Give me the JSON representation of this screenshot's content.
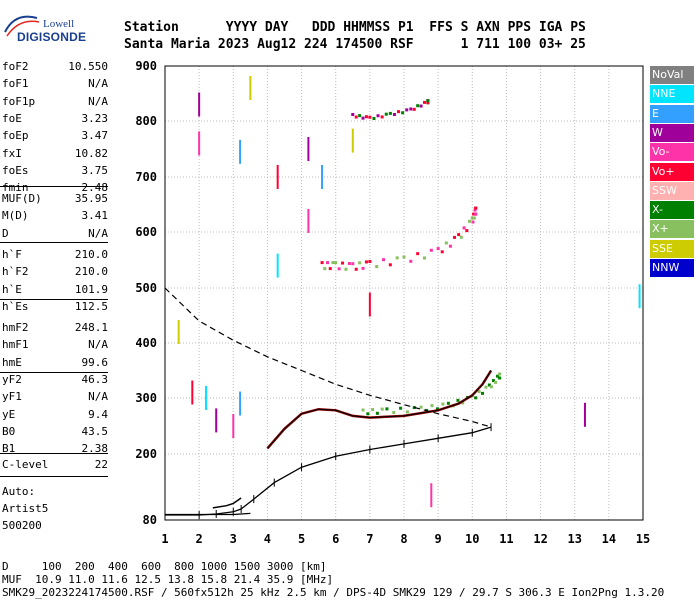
{
  "logo": {
    "line1": "Lowell",
    "line2": "DIGISONDE"
  },
  "header": {
    "labels": [
      "Station",
      "YYYY",
      "DAY",
      "DDD",
      "HHMMSS",
      "P1",
      "FFS",
      "S",
      "AXN",
      "PPS",
      "IGA",
      "PS"
    ],
    "values": [
      "Santa Maria",
      "2023",
      "Aug12",
      "224",
      "174500",
      "RSF",
      "1",
      "711",
      "100",
      "03+",
      "25"
    ]
  },
  "params_a": [
    {
      "k": "foF2",
      "v": "10.550"
    },
    {
      "k": "foF1",
      "v": "N/A"
    },
    {
      "k": "foF1p",
      "v": "N/A"
    },
    {
      "k": "foE",
      "v": "3.23"
    },
    {
      "k": "foEp",
      "v": "3.47"
    },
    {
      "k": "fxI",
      "v": "10.82"
    },
    {
      "k": "foEs",
      "v": "3.75"
    },
    {
      "k": "fmin",
      "v": "2.48"
    }
  ],
  "params_b": [
    {
      "k": "MUF(D)",
      "v": "35.95"
    },
    {
      "k": "M(D)",
      "v": "3.41"
    },
    {
      "k": "D",
      "v": "N/A"
    }
  ],
  "params_c": [
    {
      "k": "h`F",
      "v": "210.0"
    },
    {
      "k": "h`F2",
      "v": "210.0"
    },
    {
      "k": "h`E",
      "v": "101.9"
    },
    {
      "k": "h`Es",
      "v": "112.5"
    }
  ],
  "params_d": [
    {
      "k": "hmF2",
      "v": "248.1"
    },
    {
      "k": "hmF1",
      "v": "N/A"
    },
    {
      "k": "hmE",
      "v": "99.6"
    },
    {
      "k": "yF2",
      "v": "46.3"
    },
    {
      "k": "yF1",
      "v": "N/A"
    },
    {
      "k": "yE",
      "v": "9.4"
    },
    {
      "k": "B0",
      "v": "43.5"
    },
    {
      "k": "B1",
      "v": "2.38"
    }
  ],
  "params_e": [
    {
      "k": "C-level",
      "v": "22"
    }
  ],
  "autoscale": {
    "line1": "Auto:",
    "line2": "Artist5",
    "line3": "500200"
  },
  "legend": [
    {
      "label": "NoVal",
      "bg": "#808080",
      "fg": "#ffffff"
    },
    {
      "label": "NNE",
      "bg": "#00e5ff",
      "fg": "#ffffff"
    },
    {
      "label": "E",
      "bg": "#33a0ff",
      "fg": "#ffffff"
    },
    {
      "label": "W",
      "bg": "#a0009a",
      "fg": "#ffffff"
    },
    {
      "label": "Vo-",
      "bg": "#ff33a8",
      "fg": "#ffffff"
    },
    {
      "label": "Vo+",
      "bg": "#ff0033",
      "fg": "#ffffff"
    },
    {
      "label": "SSW",
      "bg": "#ffb0b0",
      "fg": "#ffffff"
    },
    {
      "label": "X-",
      "bg": "#008000",
      "fg": "#ffffff"
    },
    {
      "label": "X+",
      "bg": "#88c060",
      "fg": "#ffffff"
    },
    {
      "label": "SSE",
      "bg": "#cccc00",
      "fg": "#ffffff"
    },
    {
      "label": "NNW",
      "bg": "#0000cc",
      "fg": "#ffffff"
    }
  ],
  "footer": {
    "line1": "D     100  200  400  600  800 1000 1500 3000 [km]",
    "line2": "MUF  10.9 11.0 11.6 12.5 13.8 15.8 21.4 35.9 [MHz]",
    "line3": "SMK29_2023224174500.RSF / 560fx512h 25 kHz 2.5 km / DPS-4D SMK29 129 / 29.7 S 306.3 E Ion2Png 1.3.20"
  },
  "chart_data": {
    "type": "scatter",
    "title": "",
    "xlabel": "",
    "ylabel": "",
    "xlim": [
      1,
      15
    ],
    "ylim": [
      80,
      900
    ],
    "x_ticks": [
      1,
      2,
      3,
      4,
      5,
      6,
      7,
      8,
      9,
      10,
      11,
      12,
      13,
      14,
      15
    ],
    "y_ticks": [
      80,
      200,
      300,
      400,
      500,
      600,
      700,
      800,
      900
    ],
    "y_tick_labels": [
      "80",
      "200",
      "300",
      "400",
      "500",
      "600",
      "700",
      "800",
      "900"
    ],
    "grid": true,
    "muf_curve": [
      [
        1.0,
        500
      ],
      [
        1.5,
        470
      ],
      [
        2,
        440
      ],
      [
        3,
        405
      ],
      [
        4,
        375
      ],
      [
        5,
        350
      ],
      [
        6,
        325
      ],
      [
        7,
        305
      ],
      [
        8,
        288
      ],
      [
        9,
        272
      ],
      [
        10,
        258
      ],
      [
        10.55,
        248
      ]
    ],
    "ne_profile": [
      [
        1.0,
        89
      ],
      [
        2,
        89
      ],
      [
        2.5,
        91
      ],
      [
        3.0,
        95
      ],
      [
        3.23,
        100
      ],
      [
        3.6,
        118
      ],
      [
        4.2,
        148
      ],
      [
        5,
        176
      ],
      [
        6,
        196
      ],
      [
        7,
        208
      ],
      [
        8,
        218
      ],
      [
        9,
        228
      ],
      [
        10,
        238
      ],
      [
        10.55,
        248
      ]
    ],
    "f_trace_o": [
      [
        4.0,
        210
      ],
      [
        4.5,
        245
      ],
      [
        5.0,
        272
      ],
      [
        5.5,
        280
      ],
      [
        6.0,
        278
      ],
      [
        6.5,
        268
      ],
      [
        7,
        265
      ],
      [
        8,
        268
      ],
      [
        9,
        278
      ],
      [
        9.6,
        290
      ],
      [
        10.0,
        305
      ],
      [
        10.3,
        325
      ],
      [
        10.55,
        350
      ]
    ],
    "f_trace_x": [
      [
        6.8,
        275
      ],
      [
        7.5,
        277
      ],
      [
        8.5,
        280
      ],
      [
        9.3,
        287
      ],
      [
        10,
        300
      ],
      [
        10.5,
        320
      ],
      [
        10.8,
        340
      ]
    ],
    "e_trace": [
      [
        2.4,
        102
      ],
      [
        2.8,
        106
      ],
      [
        3.0,
        110
      ],
      [
        3.23,
        120
      ]
    ],
    "es_trace": [
      [
        1.0,
        90
      ],
      [
        2.0,
        90
      ],
      [
        3.0,
        90
      ],
      [
        3.5,
        92
      ]
    ],
    "f2_multi": [
      [
        5.6,
        540
      ],
      [
        6,
        540
      ],
      [
        6.5,
        538
      ],
      [
        7,
        542
      ],
      [
        8,
        550
      ],
      [
        9,
        565
      ],
      [
        9.6,
        590
      ],
      [
        10.0,
        620
      ],
      [
        10.1,
        638
      ]
    ],
    "top_trace": [
      [
        6.5,
        810
      ],
      [
        7,
        805
      ],
      [
        7.6,
        812
      ],
      [
        8.2,
        820
      ],
      [
        8.7,
        835
      ]
    ],
    "scattered": [
      [
        2.0,
        830
      ],
      [
        2.0,
        760
      ],
      [
        3.2,
        745
      ],
      [
        3.5,
        860
      ],
      [
        4.3,
        700
      ],
      [
        4.3,
        540
      ],
      [
        5.2,
        750
      ],
      [
        5.2,
        620
      ],
      [
        5.6,
        700
      ],
      [
        1.4,
        420
      ],
      [
        1.8,
        310
      ],
      [
        2.2,
        300
      ],
      [
        2.5,
        260
      ],
      [
        3.0,
        250
      ],
      [
        3.2,
        290
      ],
      [
        6.5,
        765
      ],
      [
        7.0,
        470
      ],
      [
        14.9,
        485
      ],
      [
        13.3,
        270
      ],
      [
        8.8,
        125
      ]
    ]
  }
}
